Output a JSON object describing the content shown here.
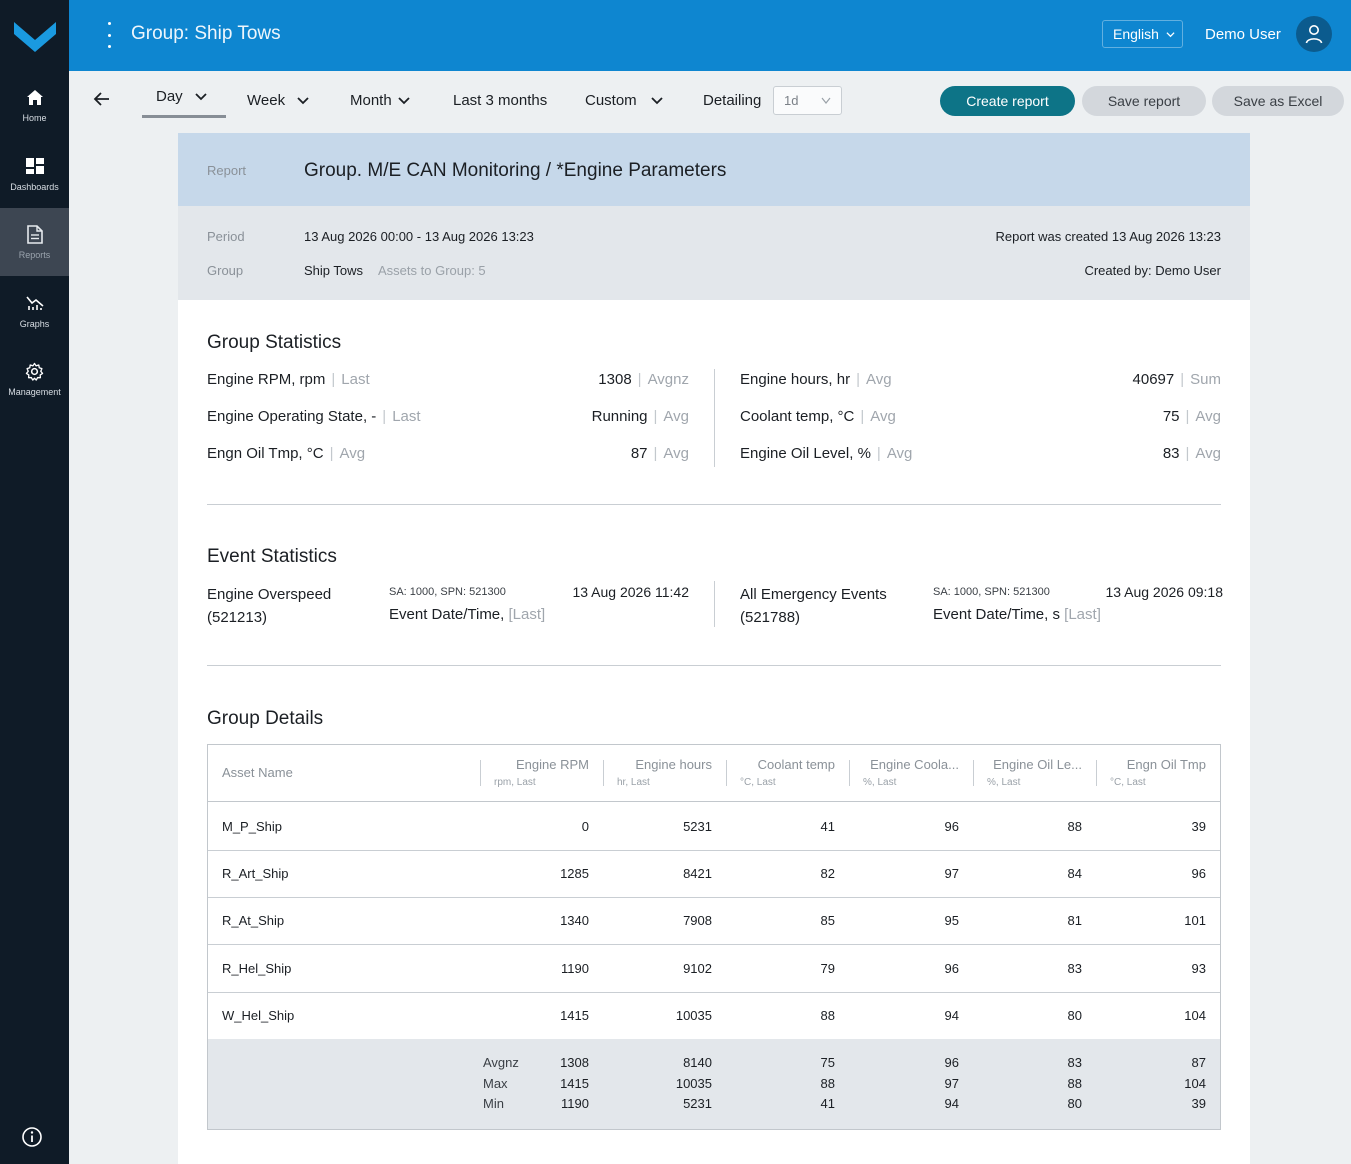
{
  "colors": {
    "sidebar": "#0f1b27",
    "header": "#0e86d0",
    "primary_button": "#0d7487",
    "report_head": "#c6d8ea"
  },
  "nav": [
    {
      "label": "Home",
      "icon": "home-icon"
    },
    {
      "label": "Dashboards",
      "icon": "dashboard-icon"
    },
    {
      "label": "Reports",
      "icon": "document-icon",
      "active": true
    },
    {
      "label": "Graphs",
      "icon": "graph-icon"
    },
    {
      "label": "Management",
      "icon": "gear-icon"
    }
  ],
  "header": {
    "title": "Group: Ship Tows",
    "language": "English",
    "user": "Demo User"
  },
  "toolbar": {
    "tabs": [
      "Day",
      "Week",
      "Month",
      "Last 3 months",
      "Custom"
    ],
    "detailing_label": "Detailing",
    "detailing_value": "1d",
    "create_label": "Create report",
    "save_label": "Save report",
    "excel_label": "Save as Excel"
  },
  "report": {
    "label": "Report",
    "title": "Group. M/E CAN Monitoring / *Engine Parameters",
    "period_label": "Period",
    "period": "13 Aug 2026 00:00 - 13 Aug 2026 13:23",
    "group_label": "Group",
    "group": "Ship Tows",
    "assets": "Assets to Group: 5",
    "created": "Report was created 13 Aug 2026 13:23",
    "created_by": "Created by: Demo User"
  },
  "group_stats": {
    "title": "Group Statistics",
    "left": [
      {
        "name": "Engine RPM, rpm",
        "agg": "Last",
        "value": "1308",
        "vagg": "Avgnz"
      },
      {
        "name": "Engine Operating State, -",
        "agg": "Last",
        "value": "Running",
        "vagg": "Avg"
      },
      {
        "name": "Engn Oil Tmp, °C",
        "agg": "Avg",
        "value": "87",
        "vagg": "Avg"
      }
    ],
    "right": [
      {
        "name": "Engine hours, hr",
        "agg": "Avg",
        "value": "40697",
        "vagg": "Sum"
      },
      {
        "name": "Coolant temp, °C",
        "agg": "Avg",
        "value": "75",
        "vagg": "Avg"
      },
      {
        "name": "Engine Oil Level, %",
        "agg": "Avg",
        "value": "83",
        "vagg": "Avg"
      }
    ]
  },
  "event_stats": {
    "title": "Event Statistics",
    "events": [
      {
        "name": "Engine Overspeed (521213)",
        "spn": "SA: 1000, SPN: 521300",
        "date": "13 Aug 2026 11:42",
        "label": "Event Date/Time,",
        "agg": "[Last]"
      },
      {
        "name": "All Emergency Events (521788)",
        "spn": "SA: 1000, SPN: 521300",
        "date": "13 Aug 2026 09:18",
        "label": "Event Date/Time, s",
        "agg": "[Last]"
      }
    ]
  },
  "group_details": {
    "title": "Group Details",
    "asset_header": "Asset Name",
    "columns": [
      {
        "name": "Engine RPM",
        "unit": "rpm, Last"
      },
      {
        "name": "Engine hours",
        "unit": "hr, Last"
      },
      {
        "name": "Coolant temp",
        "unit": "°C, Last"
      },
      {
        "name": "Engine Coola...",
        "unit": "%, Last"
      },
      {
        "name": "Engine Oil Le...",
        "unit": "%, Last"
      },
      {
        "name": "Engn Oil Tmp",
        "unit": "°C, Last"
      }
    ],
    "rows": [
      {
        "asset": "M_P_Ship",
        "values": [
          "0",
          "5231",
          "41",
          "96",
          "88",
          "39"
        ]
      },
      {
        "asset": "R_Art_Ship",
        "values": [
          "1285",
          "8421",
          "82",
          "97",
          "84",
          "96"
        ]
      },
      {
        "asset": "R_At_Ship",
        "values": [
          "1340",
          "7908",
          "85",
          "95",
          "81",
          "101"
        ]
      },
      {
        "asset": "R_Hel_Ship",
        "values": [
          "1190",
          "9102",
          "79",
          "96",
          "83",
          "93"
        ]
      },
      {
        "asset": "W_Hel_Ship",
        "values": [
          "1415",
          "10035",
          "88",
          "94",
          "80",
          "104"
        ]
      }
    ],
    "summary": [
      {
        "label": "Avgnz",
        "values": [
          "1308",
          "8140",
          "75",
          "96",
          "83",
          "87"
        ]
      },
      {
        "label": "Max",
        "values": [
          "1415",
          "10035",
          "88",
          "97",
          "88",
          "104"
        ]
      },
      {
        "label": "Min",
        "values": [
          "1190",
          "5231",
          "41",
          "94",
          "80",
          "39"
        ]
      }
    ]
  }
}
